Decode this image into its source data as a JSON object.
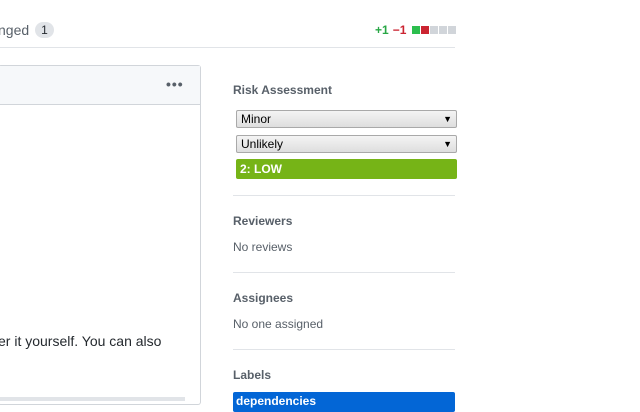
{
  "tabs": {
    "files_changed_label": "nged",
    "files_changed_count": "1"
  },
  "diffstat": {
    "additions": "+1",
    "deletions": "−1",
    "blocks": [
      "#2cbe4e",
      "#cb2431",
      "#d1d5da",
      "#d1d5da",
      "#d1d5da"
    ]
  },
  "comment": {
    "menu_icon": "kebab-horizontal-icon",
    "text": "er it yourself. You can also"
  },
  "sidebar": {
    "risk": {
      "heading": "Risk Assessment",
      "impact": "Minor",
      "likelihood": "Unlikely",
      "result": "2: LOW",
      "result_color": "#76b417"
    },
    "reviewers": {
      "heading": "Reviewers",
      "value": "No reviews"
    },
    "assignees": {
      "heading": "Assignees",
      "value": "No one assigned"
    },
    "labels": {
      "heading": "Labels",
      "items": [
        {
          "name": "dependencies",
          "color": "#0366d6"
        }
      ]
    }
  }
}
